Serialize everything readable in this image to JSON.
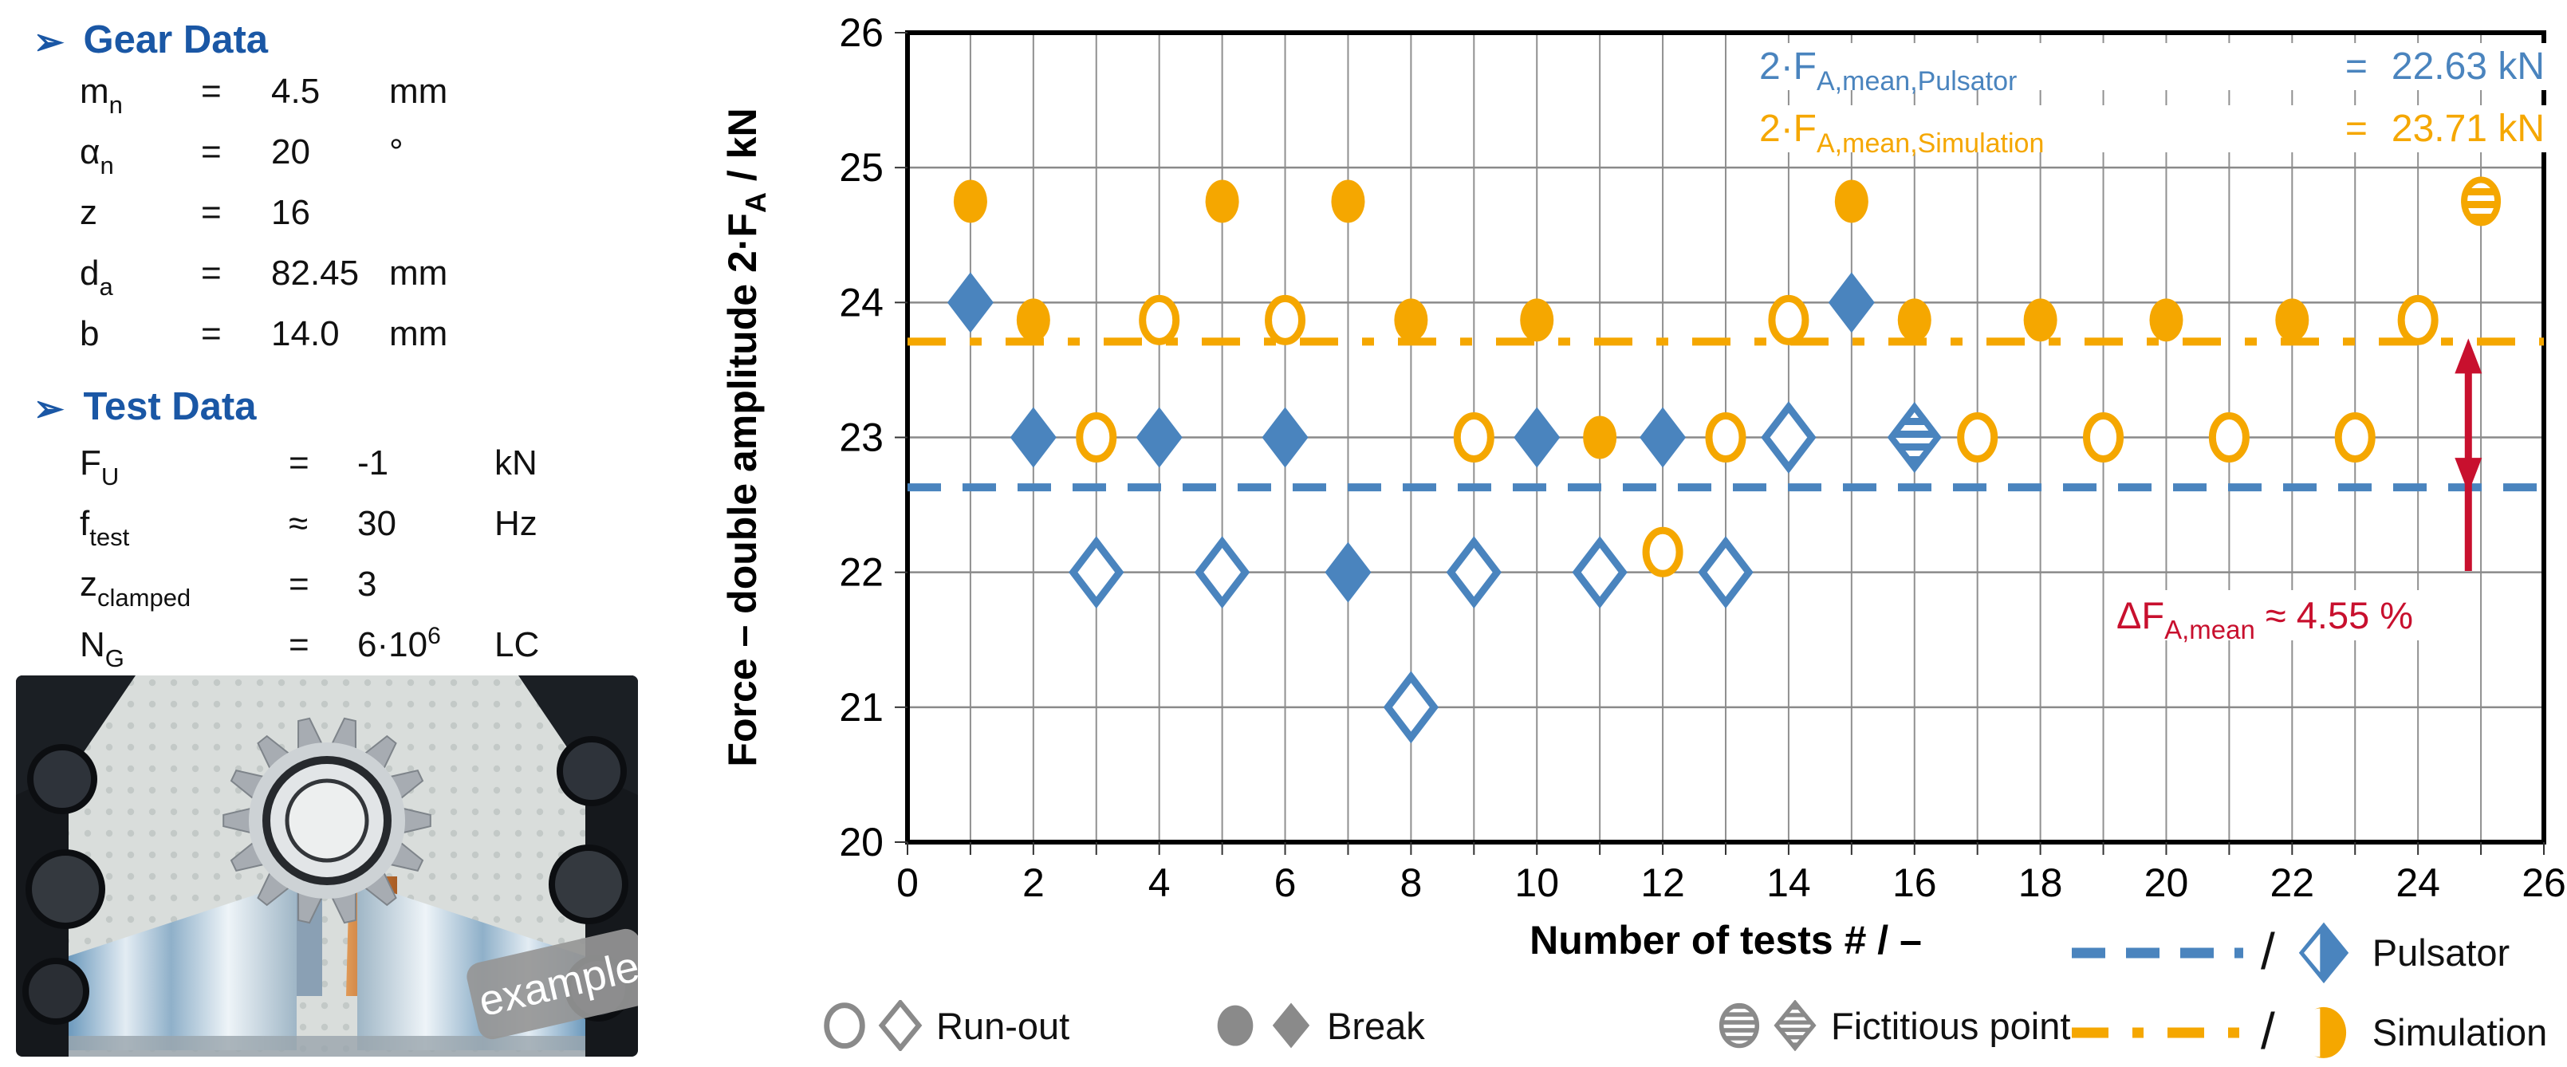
{
  "gear_data": {
    "title": "Gear Data",
    "bullet": "➢",
    "rows": [
      {
        "sym": "m",
        "sub": "n",
        "rel": "=",
        "val": "4.5",
        "val_sup": "",
        "unit": "mm"
      },
      {
        "sym": "α",
        "sub": "n",
        "rel": "=",
        "val": "20",
        "val_sup": "",
        "unit": "°"
      },
      {
        "sym": "z",
        "sub": "",
        "rel": "=",
        "val": "16",
        "val_sup": "",
        "unit": ""
      },
      {
        "sym": "d",
        "sub": "a",
        "rel": "=",
        "val": "82.45",
        "val_sup": "",
        "unit": "mm"
      },
      {
        "sym": "b",
        "sub": "",
        "rel": "=",
        "val": "14.0",
        "val_sup": "",
        "unit": "mm"
      }
    ]
  },
  "test_data": {
    "title": "Test Data",
    "bullet": "➢",
    "rows": [
      {
        "sym": "F",
        "sub": "U",
        "rel": "=",
        "val": "-1",
        "val_sup": "",
        "unit": "kN"
      },
      {
        "sym": "f",
        "sub": "test",
        "rel": "≈",
        "val": "30",
        "val_sup": "",
        "unit": "Hz"
      },
      {
        "sym": "z",
        "sub": "clamped",
        "rel": "=",
        "val": "3",
        "val_sup": "",
        "unit": ""
      },
      {
        "sym": "N",
        "sub": "G",
        "rel": "=",
        "val": "6·10",
        "val_sup": "6",
        "unit": "LC"
      }
    ]
  },
  "photo": {
    "badge": "example"
  },
  "chart_data": {
    "type": "scatter",
    "xlabel": "Number of tests # / –",
    "ylabel_main": "Force – double amplitude 2·F",
    "ylabel_sub": "A",
    "ylabel_suffix": " / kN",
    "xlim": [
      0,
      26
    ],
    "ylim": [
      20,
      26
    ],
    "xticks": [
      0,
      2,
      4,
      6,
      8,
      10,
      12,
      14,
      16,
      18,
      20,
      22,
      24,
      26
    ],
    "yticks": [
      20,
      21,
      22,
      23,
      24,
      25,
      26
    ],
    "grid": true,
    "series": [
      {
        "name": "Pulsator",
        "color": "#4A84BE",
        "marker": "diamond",
        "mean_value": 22.63,
        "mean_line_style": "dashed",
        "points": [
          {
            "x": 1,
            "y": 24.0,
            "result": "break"
          },
          {
            "x": 2,
            "y": 23.0,
            "result": "break"
          },
          {
            "x": 3,
            "y": 22.0,
            "result": "run-out"
          },
          {
            "x": 4,
            "y": 23.0,
            "result": "break"
          },
          {
            "x": 5,
            "y": 22.0,
            "result": "run-out"
          },
          {
            "x": 6,
            "y": 23.0,
            "result": "break"
          },
          {
            "x": 7,
            "y": 22.0,
            "result": "break"
          },
          {
            "x": 8,
            "y": 21.0,
            "result": "run-out"
          },
          {
            "x": 9,
            "y": 22.0,
            "result": "run-out"
          },
          {
            "x": 10,
            "y": 23.0,
            "result": "break"
          },
          {
            "x": 11,
            "y": 22.0,
            "result": "run-out"
          },
          {
            "x": 12,
            "y": 23.0,
            "result": "break"
          },
          {
            "x": 13,
            "y": 22.0,
            "result": "run-out"
          },
          {
            "x": 14,
            "y": 23.0,
            "result": "run-out"
          },
          {
            "x": 15,
            "y": 24.0,
            "result": "break"
          },
          {
            "x": 16,
            "y": 23.0,
            "result": "fictitious"
          }
        ]
      },
      {
        "name": "Simulation",
        "color": "#F5A700",
        "marker": "circle",
        "mean_value": 23.71,
        "mean_line_style": "dash-dot",
        "points": [
          {
            "x": 1,
            "y": 24.75,
            "result": "break"
          },
          {
            "x": 2,
            "y": 23.87,
            "result": "break"
          },
          {
            "x": 3,
            "y": 23.0,
            "result": "run-out"
          },
          {
            "x": 4,
            "y": 23.87,
            "result": "run-out"
          },
          {
            "x": 5,
            "y": 24.75,
            "result": "break"
          },
          {
            "x": 6,
            "y": 23.87,
            "result": "run-out"
          },
          {
            "x": 7,
            "y": 24.75,
            "result": "break"
          },
          {
            "x": 8,
            "y": 23.87,
            "result": "break"
          },
          {
            "x": 9,
            "y": 23.0,
            "result": "run-out"
          },
          {
            "x": 10,
            "y": 23.87,
            "result": "break"
          },
          {
            "x": 11,
            "y": 23.0,
            "result": "break"
          },
          {
            "x": 12,
            "y": 22.15,
            "result": "run-out"
          },
          {
            "x": 13,
            "y": 23.0,
            "result": "run-out"
          },
          {
            "x": 14,
            "y": 23.87,
            "result": "run-out"
          },
          {
            "x": 15,
            "y": 24.75,
            "result": "break"
          },
          {
            "x": 16,
            "y": 23.87,
            "result": "break"
          },
          {
            "x": 17,
            "y": 23.0,
            "result": "run-out"
          },
          {
            "x": 18,
            "y": 23.87,
            "result": "break"
          },
          {
            "x": 19,
            "y": 23.0,
            "result": "run-out"
          },
          {
            "x": 20,
            "y": 23.87,
            "result": "break"
          },
          {
            "x": 21,
            "y": 23.0,
            "result": "run-out"
          },
          {
            "x": 22,
            "y": 23.87,
            "result": "break"
          },
          {
            "x": 23,
            "y": 23.0,
            "result": "run-out"
          },
          {
            "x": 24,
            "y": 23.87,
            "result": "run-out"
          },
          {
            "x": 25,
            "y": 24.75,
            "result": "fictitious"
          }
        ]
      }
    ],
    "annotations": {
      "pulsator_mean": {
        "term_main": "2·F",
        "term_sub": "A,mean,Pulsator",
        "equals": "=",
        "value": "22.63 kN"
      },
      "simulation_mean": {
        "term_main": "2·F",
        "term_sub": "A,mean,Simulation",
        "equals": "=",
        "value": "23.71 kN"
      },
      "delta": {
        "term_main": "ΔF",
        "term_sub": "A,mean",
        "rel": "≈",
        "value": "4.55 %",
        "color": "#C8102E",
        "arrow_x": 24.8
      }
    }
  },
  "legend": {
    "symbol_color": "#8A8A8A",
    "result_items": [
      {
        "label": "Run-out",
        "style": "run-out"
      },
      {
        "label": "Break",
        "style": "break"
      },
      {
        "label": "Fictitious point",
        "style": "fictitious"
      }
    ],
    "separator": "/",
    "series_items": [
      {
        "label": "Pulsator",
        "line": "dashed",
        "marker": "diamond",
        "color": "#4A84BE"
      },
      {
        "label": "Simulation",
        "line": "dash-dot",
        "marker": "circle",
        "color": "#F5A700"
      }
    ]
  },
  "colors": {
    "pulsator": "#4A84BE",
    "simulation": "#F5A700",
    "delta_red": "#C8102E",
    "heading_blue": "#1A57A5"
  }
}
